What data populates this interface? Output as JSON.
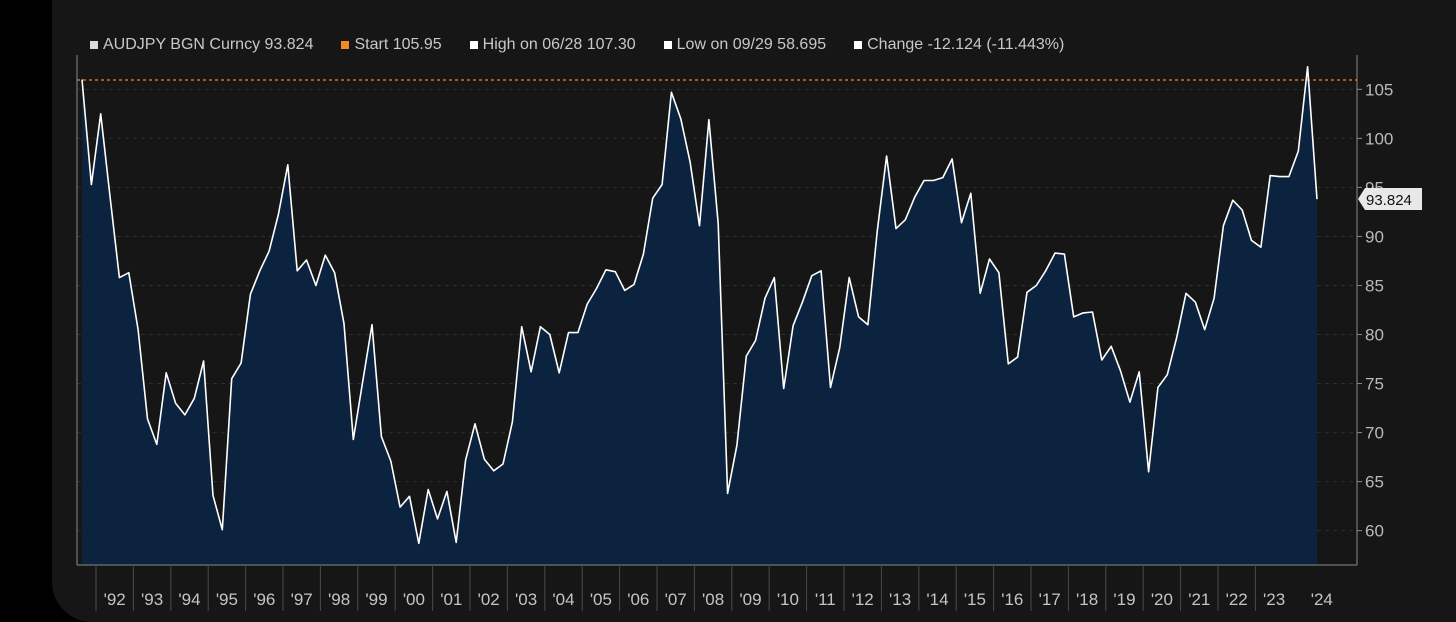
{
  "legend": {
    "series": "AUDJPY BGN Curncy 93.824",
    "start": "Start 105.95",
    "high": "High on 06/28 107.30",
    "low": "Low on 09/29 58.695",
    "change": "Change -12.124 (-11.443%)"
  },
  "colors": {
    "background": "#161616",
    "area_fill": "#0c2340",
    "line": "#ffffff",
    "start_line": "#f08a24",
    "axis": "#8a8a8a",
    "grid": "#2e2e2e"
  },
  "last_value_label": "93.824",
  "chart_data": {
    "type": "area",
    "series_name": "AUDJPY BGN Curncy",
    "frequency": "quarterly",
    "x_start": "1991-Q3",
    "ylim": [
      56.5,
      108.5
    ],
    "y_ticks": [
      60,
      65,
      70,
      75,
      80,
      85,
      90,
      95,
      100,
      105
    ],
    "x_tick_labels": [
      "'92",
      "'93",
      "'94",
      "'95",
      "'96",
      "'97",
      "'98",
      "'99",
      "'00",
      "'01",
      "'02",
      "'03",
      "'04",
      "'05",
      "'06",
      "'07",
      "'08",
      "'09",
      "'10",
      "'11",
      "'12",
      "'13",
      "'14",
      "'15",
      "'16",
      "'17",
      "'18",
      "'19",
      "'20",
      "'21",
      "'22",
      "'23",
      "'24"
    ],
    "start_value": 105.95,
    "high": {
      "date": "06/28",
      "value": 107.3
    },
    "low": {
      "date": "09/29",
      "value": 58.695
    },
    "last": 93.824,
    "grid": true,
    "values": [
      106.0,
      95.3,
      102.5,
      94.0,
      85.8,
      86.3,
      80.5,
      71.4,
      68.8,
      76.1,
      73.0,
      71.8,
      73.5,
      77.3,
      63.6,
      60.1,
      75.5,
      77.1,
      84.1,
      86.5,
      88.5,
      92.3,
      97.3,
      86.5,
      87.6,
      85.0,
      88.1,
      86.3,
      81.1,
      69.3,
      75.2,
      81.0,
      69.6,
      67.1,
      62.4,
      63.5,
      58.7,
      64.2,
      61.2,
      64.0,
      58.8,
      67.2,
      70.9,
      67.3,
      66.1,
      66.8,
      71.1,
      80.8,
      76.2,
      80.8,
      80.0,
      76.1,
      80.2,
      80.2,
      83.1,
      84.7,
      86.6,
      86.4,
      84.5,
      85.1,
      88.2,
      93.9,
      95.3,
      104.7,
      102.0,
      97.6,
      91.1,
      101.9,
      91.3,
      63.8,
      68.7,
      77.8,
      79.4,
      83.7,
      85.8,
      74.5,
      80.9,
      83.3,
      86.0,
      86.5,
      74.6,
      78.7,
      85.8,
      81.8,
      81.0,
      90.6,
      98.2,
      90.8,
      91.7,
      94.0,
      95.7,
      95.7,
      96.0,
      97.9,
      91.4,
      94.4,
      84.2,
      87.7,
      86.3,
      77.0,
      77.7,
      84.3,
      85.0,
      86.5,
      88.3,
      88.2,
      81.8,
      82.2,
      82.3,
      77.4,
      78.8,
      76.3,
      73.1,
      76.2,
      66.0,
      74.6,
      75.9,
      79.7,
      84.2,
      83.3,
      80.5,
      83.7,
      91.1,
      93.7,
      92.7,
      89.6,
      88.9,
      96.2,
      96.1,
      96.1,
      98.7,
      107.3,
      93.8
    ]
  }
}
